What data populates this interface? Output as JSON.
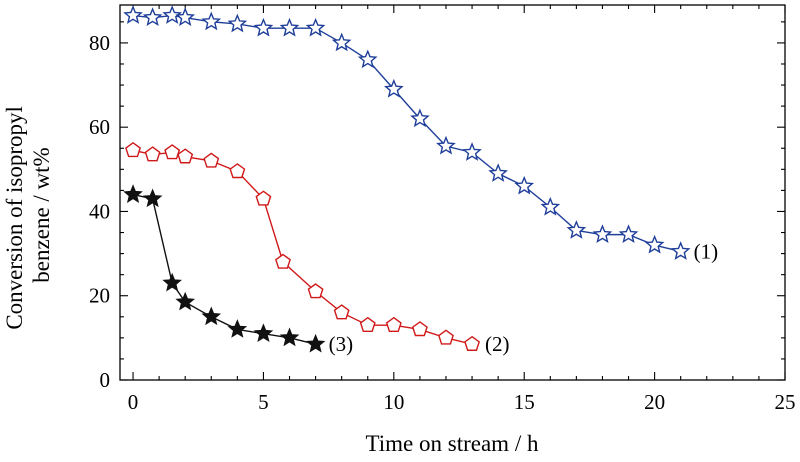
{
  "chart_data": {
    "type": "line",
    "title": "",
    "xlabel": "Time on stream / h",
    "ylabel_lines": [
      "Conversion of isopropyl",
      "benzene / wt%"
    ],
    "xlim": [
      -0.5,
      25
    ],
    "ylim": [
      0,
      89
    ],
    "xticks": [
      0,
      5,
      10,
      15,
      20,
      25
    ],
    "yticks": [
      0,
      20,
      40,
      60,
      80
    ],
    "grid": false,
    "series": [
      {
        "name": "(1)",
        "marker": "star-open",
        "color": "#1f3f9a",
        "x": [
          0,
          0.75,
          1.5,
          2,
          3,
          4,
          5,
          6,
          7,
          8,
          9,
          10,
          11,
          12,
          13,
          14,
          15,
          16,
          17,
          18,
          19,
          20,
          21
        ],
        "y": [
          86.5,
          86,
          86.5,
          86,
          85,
          84.5,
          83.5,
          83.5,
          83.5,
          80,
          76,
          69,
          62,
          55.5,
          54,
          49,
          46,
          41,
          35.5,
          34.5,
          34.5,
          32,
          30.5
        ]
      },
      {
        "name": "(2)",
        "marker": "pentagon-open",
        "color": "#d01818",
        "x": [
          0,
          0.75,
          1.5,
          2,
          3,
          4,
          5,
          5.75,
          7,
          8,
          9,
          10,
          11,
          12,
          13
        ],
        "y": [
          54.5,
          53.5,
          54,
          53,
          52,
          49.5,
          43,
          28,
          21,
          16,
          13,
          13,
          12,
          10,
          8.5
        ]
      },
      {
        "name": "(3)",
        "marker": "star-filled",
        "color": "#111111",
        "x": [
          0,
          0.75,
          1.5,
          2,
          3,
          4,
          5,
          6,
          7
        ],
        "y": [
          44,
          43,
          23,
          18.5,
          15,
          12,
          11,
          10,
          8.5
        ]
      }
    ]
  }
}
